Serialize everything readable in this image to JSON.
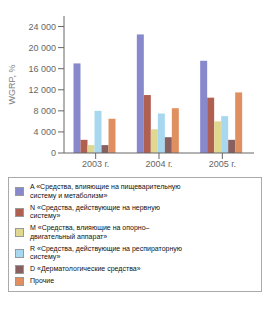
{
  "chart_data": {
    "type": "bar",
    "ylabel": "WGRP, %",
    "categories": [
      "2003 г.",
      "2004 г.",
      "2005 г."
    ],
    "series": [
      {
        "name": "A «Средства, влияющие на пищеварительную\nсистему и метаболизм»",
        "color": "#8888cc",
        "values": [
          17000,
          22500,
          17500
        ]
      },
      {
        "name": "N «Средства, действующие на нервную\nсистему»",
        "color": "#b06050",
        "values": [
          2500,
          11000,
          10500
        ]
      },
      {
        "name": "M «Средства, влияющие на опорно–\nдвигательный аппарат»",
        "color": "#e0d890",
        "values": [
          1500,
          4500,
          6000
        ]
      },
      {
        "name": "R «Средства, действующие на респираторную\nсистему»",
        "color": "#a8d8f0",
        "values": [
          8000,
          7500,
          7000
        ]
      },
      {
        "name": "D «Дерматологические средства»",
        "color": "#886060",
        "values": [
          1500,
          3000,
          2500
        ]
      },
      {
        "name": "Прочие",
        "color": "#e09060",
        "values": [
          6500,
          8500,
          11500
        ]
      }
    ],
    "ylim": [
      0,
      26000
    ],
    "yticks": [
      0,
      {
        "value": 4000,
        "label": "4 000"
      },
      {
        "value": 8000,
        "label": "8 000"
      },
      {
        "value": 12000,
        "label": "12 000"
      },
      {
        "value": 16000,
        "label": "16 000"
      },
      {
        "value": 20000,
        "label": "20 000"
      },
      {
        "value": 24000,
        "label": "24 000"
      }
    ],
    "grid": false,
    "legend": "bottom"
  }
}
